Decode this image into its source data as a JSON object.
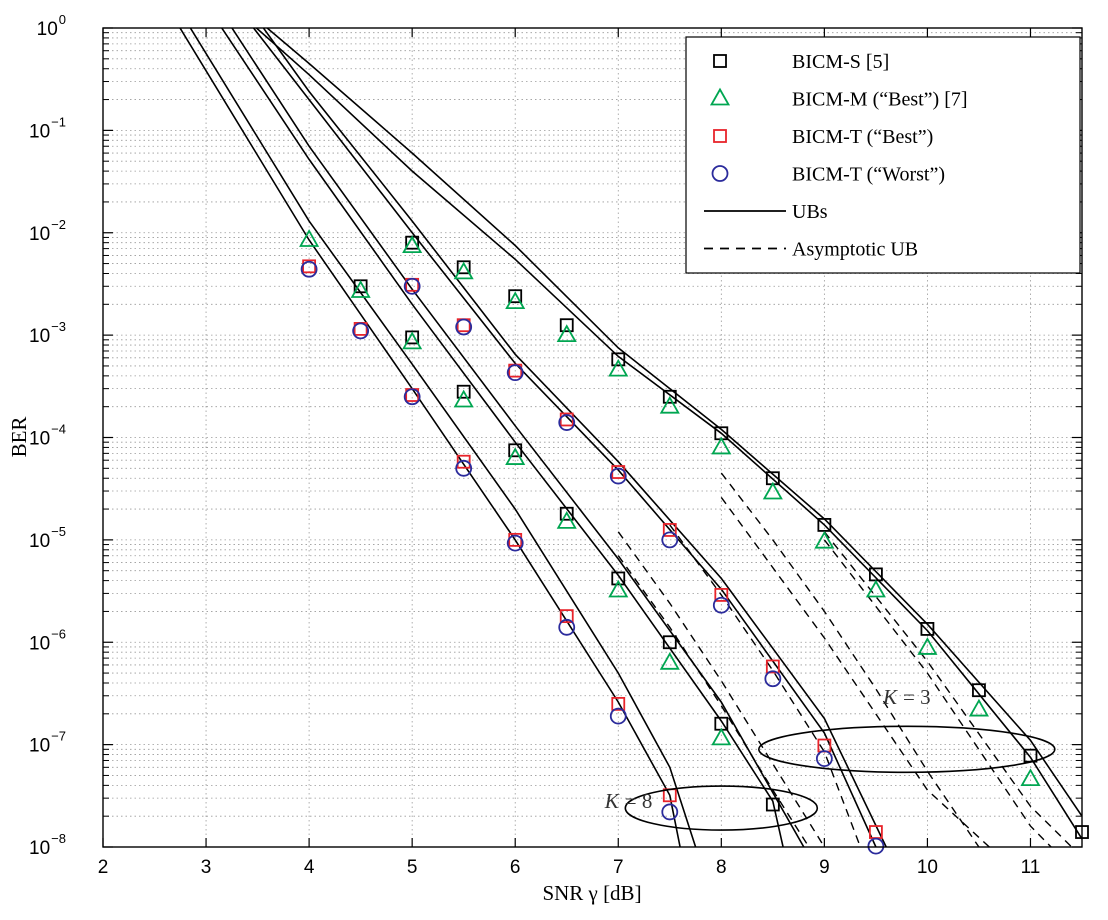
{
  "chart_data": {
    "type": "line",
    "xlabel": "SNR γ [dB]",
    "ylabel": "BER",
    "xlim": [
      2,
      11.5
    ],
    "ylim": [
      1e-08,
      1
    ],
    "yscale": "log",
    "xticks": [
      2,
      3,
      4,
      5,
      6,
      7,
      8,
      9,
      10,
      11
    ],
    "yticks": [
      {
        "base": "10",
        "exp": "0"
      },
      {
        "base": "10",
        "exp": "−1"
      },
      {
        "base": "10",
        "exp": "−2"
      },
      {
        "base": "10",
        "exp": "−3"
      },
      {
        "base": "10",
        "exp": "−4"
      },
      {
        "base": "10",
        "exp": "−5"
      },
      {
        "base": "10",
        "exp": "−6"
      },
      {
        "base": "10",
        "exp": "−7"
      },
      {
        "base": "10",
        "exp": "−8"
      }
    ],
    "grid": true,
    "legend_position": "top-right",
    "legend": [
      {
        "label": "BICM-S [5]",
        "marker": "square",
        "color": "#000000"
      },
      {
        "label": "BICM-M (“Best”) [7]",
        "marker": "triangle",
        "color": "#00a651"
      },
      {
        "label": "BICM-T (“Best”)",
        "marker": "square",
        "color": "#e8242b"
      },
      {
        "label": "BICM-T (“Worst”)",
        "marker": "circle",
        "color": "#2b2b9c"
      },
      {
        "label": "UBs",
        "marker": "solid-line",
        "color": "#000000"
      },
      {
        "label": "Asymptotic UB",
        "marker": "dashed-line",
        "color": "#000000"
      }
    ],
    "annotations": [
      {
        "text": "K = 3",
        "x": 9.8,
        "y": 2.5e-07,
        "ellipse_center": [
          9.8,
          9e-08
        ]
      },
      {
        "text": "K = 8",
        "x": 7.1,
        "y": 2.4e-08,
        "ellipse_center": [
          8.0,
          2.4e-08
        ]
      }
    ],
    "series": [
      {
        "name": "BICM-S [5]",
        "marker": "square",
        "color": "#000000",
        "points": [
          [
            4.5,
            0.003
          ],
          [
            5,
            0.00095
          ],
          [
            5.5,
            0.00028
          ],
          [
            6,
            7.5e-05
          ],
          [
            6.5,
            1.8e-05
          ],
          [
            7,
            4.2e-06
          ],
          [
            7.5,
            1e-06
          ],
          [
            8,
            1.6e-07
          ],
          [
            8.5,
            2.6e-08
          ],
          [
            5,
            0.008
          ],
          [
            5.5,
            0.0046
          ],
          [
            6,
            0.0024
          ],
          [
            6.5,
            0.00125
          ],
          [
            7,
            0.00058
          ],
          [
            7.5,
            0.00025
          ],
          [
            8,
            0.00011
          ],
          [
            8.5,
            4e-05
          ],
          [
            9,
            1.4e-05
          ],
          [
            9.5,
            4.6e-06
          ],
          [
            10,
            1.35e-06
          ],
          [
            10.5,
            3.4e-07
          ],
          [
            11,
            7.8e-08
          ],
          [
            11.5,
            1.4e-08
          ]
        ]
      },
      {
        "name": "BICM-M (“Best”) [7]",
        "marker": "triangle",
        "color": "#00a651",
        "points": [
          [
            4.5,
            0.0027
          ],
          [
            5,
            0.00085
          ],
          [
            5.5,
            0.00023
          ],
          [
            6,
            6.3e-05
          ],
          [
            6.5,
            1.5e-05
          ],
          [
            7,
            3.2e-06
          ],
          [
            7.5,
            6.3e-07
          ],
          [
            8,
            1.15e-07
          ],
          [
            4,
            0.0085
          ],
          [
            5,
            0.0074
          ],
          [
            5.5,
            0.0041
          ],
          [
            6,
            0.0021
          ],
          [
            6.5,
            0.001
          ],
          [
            7,
            0.00046
          ],
          [
            7.5,
            0.0002
          ],
          [
            8,
            8e-05
          ],
          [
            8.5,
            2.9e-05
          ],
          [
            9,
            9.6e-06
          ],
          [
            9.5,
            3.2e-06
          ],
          [
            10,
            8.8e-07
          ],
          [
            10.5,
            2.2e-07
          ],
          [
            11,
            4.6e-08
          ]
        ]
      },
      {
        "name": "BICM-T (“Best”)",
        "marker": "square",
        "color": "#e8242b",
        "points": [
          [
            4,
            0.0047
          ],
          [
            4.5,
            0.00115
          ],
          [
            5,
            0.00026
          ],
          [
            5.5,
            5.8e-05
          ],
          [
            6,
            1e-05
          ],
          [
            6.5,
            1.8e-06
          ],
          [
            7,
            2.5e-07
          ],
          [
            7.5,
            3.2e-08
          ],
          [
            5,
            0.0031
          ],
          [
            5.5,
            0.00125
          ],
          [
            6,
            0.00045
          ],
          [
            6.5,
            0.00015
          ],
          [
            7,
            4.6e-05
          ],
          [
            7.5,
            1.25e-05
          ],
          [
            8,
            2.9e-06
          ],
          [
            8.5,
            5.8e-07
          ],
          [
            9,
            9.8e-08
          ],
          [
            9.5,
            1.4e-08
          ]
        ]
      },
      {
        "name": "BICM-T (“Worst”)",
        "marker": "circle",
        "color": "#2b2b9c",
        "points": [
          [
            4,
            0.0044
          ],
          [
            4.5,
            0.0011
          ],
          [
            5,
            0.00025
          ],
          [
            5.5,
            5e-05
          ],
          [
            6,
            9.3e-06
          ],
          [
            6.5,
            1.4e-06
          ],
          [
            7,
            1.9e-07
          ],
          [
            7.5,
            2.2e-08
          ],
          [
            5,
            0.003
          ],
          [
            5.5,
            0.0012
          ],
          [
            6,
            0.00043
          ],
          [
            6.5,
            0.00014
          ],
          [
            7,
            4.2e-05
          ],
          [
            7.5,
            1e-05
          ],
          [
            8,
            2.3e-06
          ],
          [
            8.5,
            4.4e-07
          ],
          [
            9,
            7.3e-08
          ],
          [
            9.5,
            1.02e-08
          ]
        ]
      }
    ],
    "ub_curves": [
      {
        "name": "UBs",
        "style": "solid",
        "points": [
          [
            2.7,
            1.2
          ],
          [
            4,
            0.0085
          ],
          [
            5,
            0.0003
          ],
          [
            6,
            1e-05
          ],
          [
            7,
            2.6e-07
          ],
          [
            7.5,
            3.2e-08
          ],
          [
            7.6,
            1e-08
          ]
        ]
      },
      {
        "name": "UBs",
        "style": "solid",
        "points": [
          [
            2.8,
            1.2
          ],
          [
            4,
            0.013
          ],
          [
            5,
            0.00052
          ],
          [
            6,
            2e-05
          ],
          [
            7,
            5e-07
          ],
          [
            7.5,
            6e-08
          ],
          [
            7.75,
            1e-08
          ]
        ]
      },
      {
        "name": "UBs",
        "style": "solid",
        "points": [
          [
            3.1,
            1.2
          ],
          [
            4,
            0.052
          ],
          [
            5,
            0.002
          ],
          [
            6,
            9e-05
          ],
          [
            7,
            4.5e-06
          ],
          [
            8,
            1.7e-07
          ],
          [
            8.5,
            2.8e-08
          ],
          [
            8.6,
            1e-08
          ]
        ]
      },
      {
        "name": "UBs",
        "style": "solid",
        "points": [
          [
            3.2,
            1.2
          ],
          [
            4,
            0.07
          ],
          [
            5,
            0.0028
          ],
          [
            6,
            0.00013
          ],
          [
            7,
            6.5e-06
          ],
          [
            8,
            2.6e-07
          ],
          [
            8.8,
            1e-08
          ]
        ]
      },
      {
        "name": "UBs",
        "style": "solid",
        "points": [
          [
            3.4,
            1.2
          ],
          [
            4,
            0.2
          ],
          [
            5,
            0.01
          ],
          [
            6,
            0.00053
          ],
          [
            7,
            4.8e-05
          ],
          [
            8,
            3.3e-06
          ],
          [
            9,
            1.3e-07
          ],
          [
            9.5,
            1e-08
          ]
        ]
      },
      {
        "name": "UBs",
        "style": "solid",
        "points": [
          [
            3.5,
            1.2
          ],
          [
            4,
            0.24
          ],
          [
            5,
            0.013
          ],
          [
            6,
            0.00065
          ],
          [
            7,
            5.8e-05
          ],
          [
            8,
            4.2e-06
          ],
          [
            9,
            1.8e-07
          ],
          [
            9.6,
            1e-08
          ]
        ]
      },
      {
        "name": "UBs",
        "style": "solid",
        "points": [
          [
            3.4,
            1.2
          ],
          [
            4,
            0.35
          ],
          [
            5,
            0.04
          ],
          [
            6,
            0.0055
          ],
          [
            7,
            0.00062
          ],
          [
            8,
            0.00011
          ],
          [
            9,
            1.4e-05
          ],
          [
            10,
            1.3e-06
          ],
          [
            11,
            7.5e-08
          ],
          [
            11.5,
            1.2e-08
          ]
        ]
      },
      {
        "name": "UBs",
        "style": "solid",
        "points": [
          [
            3.5,
            1.2
          ],
          [
            4,
            0.45
          ],
          [
            5,
            0.06
          ],
          [
            6,
            0.0075
          ],
          [
            7,
            0.00075
          ],
          [
            8,
            0.00012
          ],
          [
            9,
            1.6e-05
          ],
          [
            10,
            1.5e-06
          ],
          [
            11,
            1.1e-07
          ],
          [
            11.5,
            2e-08
          ]
        ]
      }
    ],
    "asymptotic_curves": [
      {
        "name": "Asymptotic UB",
        "style": "dashed",
        "points": [
          [
            7,
            7e-06
          ],
          [
            7.5,
            1.4e-06
          ],
          [
            8,
            2.4e-07
          ],
          [
            8.5,
            3.6e-08
          ],
          [
            8.85,
            1e-08
          ]
        ]
      },
      {
        "name": "Asymptotic UB",
        "style": "dashed",
        "points": [
          [
            7,
            1.2e-05
          ],
          [
            7.5,
            2.4e-06
          ],
          [
            8,
            4.2e-07
          ],
          [
            8.5,
            6.5e-08
          ],
          [
            9.0,
            1e-08
          ]
        ]
      },
      {
        "name": "Asymptotic UB",
        "style": "dashed",
        "points": [
          [
            7.5,
            1.4e-05
          ],
          [
            8,
            2.9e-06
          ],
          [
            8.5,
            5.3e-07
          ],
          [
            9,
            8.5e-08
          ],
          [
            9.35,
            1e-08
          ]
        ]
      },
      {
        "name": "Asymptotic UB",
        "style": "dashed",
        "points": [
          [
            8,
            4.5e-05
          ],
          [
            8.5,
            1e-05
          ],
          [
            9,
            2e-06
          ],
          [
            9.5,
            3.5e-07
          ],
          [
            10,
            5.5e-08
          ],
          [
            10.5,
            1e-08
          ]
        ]
      },
      {
        "name": "Asymptotic UB",
        "style": "dashed",
        "points": [
          [
            8,
            2.6e-05
          ],
          [
            9,
            1.1e-06
          ],
          [
            10,
            3.6e-08
          ],
          [
            10.6,
            1e-08
          ]
        ]
      },
      {
        "name": "Asymptotic UB",
        "style": "dashed",
        "points": [
          [
            9,
            1e-05
          ],
          [
            10,
            5e-07
          ],
          [
            11,
            1.6e-08
          ],
          [
            11.2,
            1e-08
          ]
        ]
      },
      {
        "name": "Asymptotic UB",
        "style": "dashed",
        "points": [
          [
            9,
            1.2e-05
          ],
          [
            10,
            6.5e-07
          ],
          [
            11,
            2.5e-08
          ],
          [
            11.4,
            1e-08
          ]
        ]
      }
    ]
  }
}
